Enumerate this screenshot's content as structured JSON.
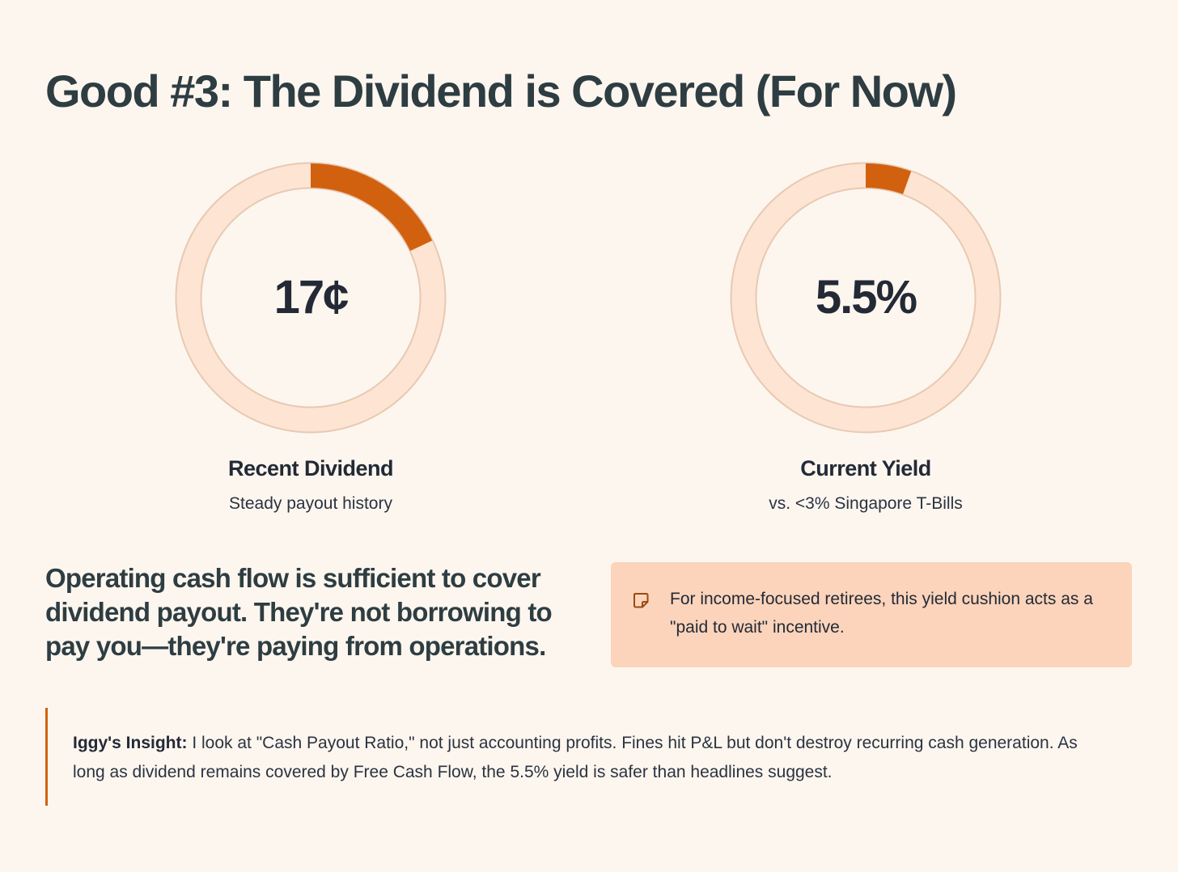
{
  "page": {
    "title": "Good #3: The Dividend is Covered (For Now)"
  },
  "metrics": [
    {
      "value": "17¢",
      "label": "Recent Dividend",
      "subtitle": "Steady payout history",
      "fill_fraction": 0.18
    },
    {
      "value": "5.5%",
      "label": "Current Yield",
      "subtitle": "vs. <3% Singapore T-Bills",
      "fill_fraction": 0.055
    }
  ],
  "statement": "Operating cash flow is sufficient to cover dividend payout. They're not borrowing to pay you—they're paying from operations.",
  "callout": {
    "icon": "sticky-note-icon",
    "text": "For income-focused retirees, this yield cushion acts as a \"paid to wait\" incentive."
  },
  "insight": {
    "label": "Iggy's Insight:",
    "text": " I look at \"Cash Payout Ratio,\" not just accounting profits. Fines hit P&L but don't destroy recurring cash generation. As long as dividend remains covered by Free Cash Flow, the 5.5% yield is safer than headlines suggest."
  },
  "colors": {
    "background": "#fdf6ef",
    "ring_track": "#fde4d3",
    "ring_fill": "#d2610f",
    "callout_bg": "#fbd4bb",
    "accent_border": "#d2610f"
  }
}
